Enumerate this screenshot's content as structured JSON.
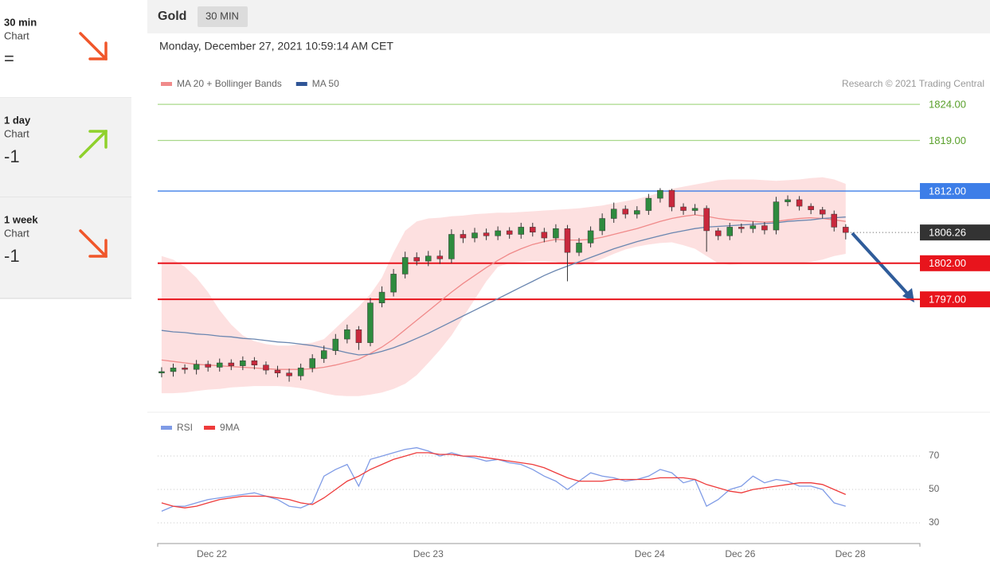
{
  "sidebar": [
    {
      "period": "30 min",
      "label": "Chart",
      "score": "=",
      "direction": "down"
    },
    {
      "period": "1 day",
      "label": "Chart",
      "score": "-1",
      "direction": "up"
    },
    {
      "period": "1 week",
      "label": "Chart",
      "score": "-1",
      "direction": "down"
    }
  ],
  "header": {
    "title": "Gold",
    "timeframe": "30 MIN"
  },
  "timestamp": "Monday, December 27, 2021 10:59:14 AM CET",
  "chart_data": [
    {
      "type": "candlestick",
      "credit": "Research © 2021 Trading Central",
      "up_color": "#2e8b3e",
      "down_color": "#c8283c",
      "open": [
        1786.8,
        1787.0,
        1787.5,
        1787.3,
        1788.0,
        1787.6,
        1788.2,
        1787.8,
        1788.5,
        1787.9,
        1787.2,
        1786.8,
        1786.4,
        1787.5,
        1788.8,
        1789.9,
        1791.5,
        1792.8,
        1791.0,
        1796.5,
        1798.0,
        1800.5,
        1802.8,
        1802.3,
        1803.0,
        1802.6,
        1806.0,
        1805.5,
        1806.2,
        1805.8,
        1806.5,
        1806.0,
        1807.0,
        1806.3,
        1805.5,
        1806.8,
        1803.5,
        1804.8,
        1806.5,
        1808.2,
        1809.5,
        1808.8,
        1809.3,
        1811.0,
        1812.1,
        1809.8,
        1809.3,
        1809.6,
        1806.5,
        1805.8,
        1807.0,
        1806.8,
        1807.2,
        1806.6,
        1810.5,
        1810.8,
        1809.9,
        1809.4,
        1808.8,
        1807.0
      ],
      "high": [
        1787.6,
        1788.1,
        1788.0,
        1788.6,
        1788.5,
        1788.8,
        1788.7,
        1789.1,
        1789.0,
        1788.4,
        1787.8,
        1787.4,
        1788.1,
        1789.4,
        1790.6,
        1792.2,
        1793.5,
        1793.3,
        1797.2,
        1798.8,
        1801.2,
        1803.6,
        1803.5,
        1803.7,
        1803.8,
        1806.7,
        1806.6,
        1806.9,
        1806.8,
        1807.1,
        1807.0,
        1807.6,
        1807.6,
        1806.9,
        1807.4,
        1807.3,
        1805.5,
        1807.1,
        1808.9,
        1810.4,
        1810.0,
        1809.9,
        1811.6,
        1812.4,
        1812.3,
        1810.3,
        1810.2,
        1810.0,
        1806.9,
        1807.6,
        1807.5,
        1807.8,
        1807.7,
        1811.2,
        1811.4,
        1811.3,
        1810.3,
        1809.8,
        1809.3,
        1807.4
      ],
      "low": [
        1786.2,
        1786.3,
        1786.7,
        1786.6,
        1787.0,
        1787.0,
        1787.2,
        1787.2,
        1787.3,
        1786.6,
        1786.2,
        1785.6,
        1785.8,
        1786.9,
        1788.2,
        1789.3,
        1790.9,
        1790.0,
        1790.5,
        1795.9,
        1797.4,
        1799.9,
        1801.7,
        1801.6,
        1801.9,
        1802.0,
        1804.8,
        1804.9,
        1805.2,
        1805.2,
        1805.4,
        1805.4,
        1805.7,
        1804.9,
        1804.9,
        1799.5,
        1803.0,
        1804.2,
        1805.9,
        1807.6,
        1808.2,
        1808.2,
        1808.7,
        1810.4,
        1809.2,
        1808.7,
        1808.7,
        1803.6,
        1805.2,
        1805.2,
        1806.2,
        1806.2,
        1806.0,
        1806.0,
        1809.9,
        1809.3,
        1808.8,
        1808.2,
        1806.4,
        1805.3
      ],
      "close": [
        1787.0,
        1787.5,
        1787.3,
        1788.0,
        1787.6,
        1788.2,
        1787.8,
        1788.5,
        1787.9,
        1787.2,
        1786.8,
        1786.4,
        1787.5,
        1788.8,
        1789.9,
        1791.5,
        1792.8,
        1791.0,
        1796.5,
        1798.0,
        1800.5,
        1802.8,
        1802.3,
        1803.0,
        1802.6,
        1806.0,
        1805.5,
        1806.2,
        1805.8,
        1806.5,
        1806.0,
        1807.0,
        1806.3,
        1805.5,
        1806.8,
        1803.5,
        1804.8,
        1806.5,
        1808.2,
        1809.5,
        1808.8,
        1809.3,
        1811.0,
        1812.1,
        1809.8,
        1809.3,
        1809.6,
        1806.5,
        1805.8,
        1807.0,
        1806.8,
        1807.2,
        1806.6,
        1810.5,
        1810.8,
        1809.9,
        1809.4,
        1808.8,
        1807.0,
        1806.26
      ],
      "series": [
        {
          "name": "MA 20 + Bollinger Bands",
          "color": "#f08a8a",
          "band_color": "#fde0e0",
          "values": [
            1788.6,
            1788.4,
            1788.2,
            1788.0,
            1787.9,
            1787.8,
            1787.7,
            1787.6,
            1787.5,
            1787.4,
            1787.3,
            1787.3,
            1787.3,
            1787.4,
            1787.6,
            1787.9,
            1788.3,
            1788.7,
            1789.5,
            1790.4,
            1791.5,
            1792.8,
            1794.1,
            1795.4,
            1796.7,
            1798.0,
            1799.2,
            1800.3,
            1801.4,
            1802.4,
            1803.3,
            1804.0,
            1804.6,
            1805.0,
            1805.3,
            1805.2,
            1805.2,
            1805.3,
            1805.6,
            1806.0,
            1806.4,
            1806.8,
            1807.3,
            1807.8,
            1808.2,
            1808.5,
            1808.7,
            1808.5,
            1808.2,
            1808.0,
            1807.9,
            1807.8,
            1807.7,
            1807.8,
            1808.0,
            1808.2,
            1808.3,
            1808.2,
            1808.0,
            1807.8
          ],
          "upper": [
            1803.0,
            1802.5,
            1801.5,
            1800.0,
            1798.0,
            1795.5,
            1793.5,
            1792.0,
            1791.2,
            1790.8,
            1790.6,
            1790.6,
            1790.8,
            1791.0,
            1791.5,
            1793.0,
            1794.5,
            1796.0,
            1797.7,
            1800.0,
            1803.5,
            1806.5,
            1807.8,
            1808.2,
            1808.3,
            1808.5,
            1808.6,
            1808.8,
            1808.9,
            1809.0,
            1809.0,
            1809.1,
            1809.2,
            1809.3,
            1809.4,
            1809.5,
            1809.6,
            1809.8,
            1810.0,
            1810.3,
            1810.6,
            1810.9,
            1811.3,
            1811.8,
            1812.3,
            1812.6,
            1812.9,
            1813.2,
            1813.5,
            1813.6,
            1813.6,
            1813.6,
            1813.5,
            1813.4,
            1813.5,
            1813.6,
            1813.8,
            1813.9,
            1813.6,
            1813.0
          ],
          "lower": [
            1784.0,
            1784.0,
            1784.1,
            1784.3,
            1784.5,
            1784.6,
            1784.8,
            1784.9,
            1785.0,
            1785.0,
            1785.0,
            1784.9,
            1784.7,
            1784.4,
            1784.0,
            1783.7,
            1783.6,
            1783.6,
            1783.8,
            1784.1,
            1784.6,
            1785.3,
            1786.5,
            1788.2,
            1790.0,
            1792.0,
            1794.5,
            1797.0,
            1799.5,
            1801.5,
            1802.0,
            1802.2,
            1802.3,
            1802.3,
            1802.2,
            1801.9,
            1801.8,
            1802.0,
            1802.6,
            1803.3,
            1803.9,
            1804.3,
            1804.6,
            1804.8,
            1804.9,
            1804.5,
            1804.0,
            1803.0,
            1802.0,
            1801.8,
            1801.9,
            1802.0,
            1802.0,
            1802.1,
            1802.0,
            1802.0,
            1802.2,
            1802.5,
            1803.0,
            1803.3
          ]
        },
        {
          "name": "MA 50",
          "color": "#6a86b0",
          "legend_color": "#2f5596",
          "values": [
            1792.7,
            1792.5,
            1792.4,
            1792.2,
            1792.1,
            1791.9,
            1791.8,
            1791.6,
            1791.5,
            1791.3,
            1791.1,
            1791.0,
            1790.8,
            1790.6,
            1790.3,
            1790.0,
            1789.6,
            1789.3,
            1789.4,
            1789.8,
            1790.3,
            1790.9,
            1791.6,
            1792.3,
            1793.1,
            1793.9,
            1794.7,
            1795.5,
            1796.3,
            1797.1,
            1797.9,
            1798.7,
            1799.5,
            1800.3,
            1801.0,
            1801.6,
            1802.2,
            1802.8,
            1803.4,
            1804.0,
            1804.5,
            1805.0,
            1805.4,
            1805.8,
            1806.2,
            1806.5,
            1806.8,
            1807.0,
            1807.1,
            1807.2,
            1807.3,
            1807.4,
            1807.5,
            1807.6,
            1807.8,
            1807.9,
            1808.0,
            1808.2,
            1808.3,
            1808.4
          ]
        }
      ],
      "levels": [
        {
          "value": 1824,
          "label": "1824.00",
          "color": "#a8d88a",
          "text_color": "#5aa02c",
          "boxed": false
        },
        {
          "value": 1819,
          "label": "1819.00",
          "color": "#a8d88a",
          "text_color": "#5aa02c",
          "boxed": false
        },
        {
          "value": 1812,
          "label": "1812.00",
          "color": "#3d7ee8",
          "text_color": "#ffffff",
          "boxed": true
        },
        {
          "value": 1802,
          "label": "1802.00",
          "color": "#e8141c",
          "text_color": "#ffffff",
          "boxed": true
        },
        {
          "value": 1797,
          "label": "1797.00",
          "color": "#e8141c",
          "text_color": "#ffffff",
          "boxed": true
        }
      ],
      "last": {
        "value": 1806.26,
        "label": "1806.26",
        "color": "#333333"
      },
      "ylim": [
        1781.7,
        1826
      ],
      "xlim": [
        -0.34,
        65.4
      ]
    },
    {
      "type": "line",
      "series": [
        {
          "name": "RSI",
          "color": "#7f9be6",
          "values": [
            37,
            40,
            40,
            42,
            44,
            45,
            46,
            47,
            48,
            46,
            44,
            40,
            39,
            42,
            58,
            62,
            65,
            52,
            68,
            70,
            72,
            74,
            75,
            73,
            70,
            72,
            70,
            69,
            67,
            68,
            66,
            65,
            62,
            58,
            55,
            50,
            55,
            60,
            58,
            57,
            55,
            56,
            58,
            62,
            60,
            54,
            56,
            40,
            44,
            50,
            52,
            58,
            54,
            56,
            55,
            52,
            52,
            50,
            42,
            40
          ]
        },
        {
          "name": "9MA",
          "color": "#ee3b3b",
          "values": [
            42,
            40,
            39,
            40,
            42,
            44,
            45,
            46,
            46,
            46,
            45,
            44,
            42,
            41,
            45,
            50,
            55,
            58,
            62,
            65,
            68,
            70,
            72,
            72,
            71,
            71,
            70,
            70,
            69,
            68,
            67,
            66,
            65,
            63,
            60,
            57,
            55,
            55,
            55,
            56,
            56,
            56,
            56,
            57,
            57,
            57,
            56,
            53,
            51,
            49,
            48,
            50,
            51,
            52,
            53,
            54,
            54,
            53,
            50,
            47
          ]
        }
      ],
      "ylim": [
        20.5,
        78.6
      ],
      "yticks": [
        30,
        50,
        70
      ],
      "grid": true,
      "xlim": [
        -0.34,
        65.4
      ],
      "xticks": [
        {
          "value": 4.33,
          "label": "Dec 22"
        },
        {
          "value": 23.0,
          "label": "Dec 23"
        },
        {
          "value": 42.1,
          "label": "Dec 24"
        },
        {
          "value": 49.9,
          "label": "Dec 26"
        },
        {
          "value": 59.4,
          "label": "Dec 28"
        }
      ]
    }
  ]
}
